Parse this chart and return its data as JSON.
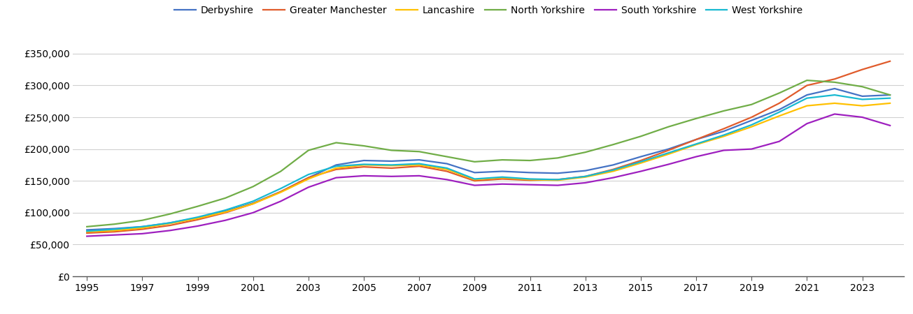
{
  "title": "",
  "years": [
    1995,
    1996,
    1997,
    1998,
    1999,
    2000,
    2001,
    2002,
    2003,
    2004,
    2005,
    2006,
    2007,
    2008,
    2009,
    2010,
    2011,
    2012,
    2013,
    2014,
    2015,
    2016,
    2017,
    2018,
    2019,
    2020,
    2021,
    2022,
    2023,
    2024
  ],
  "series": {
    "Derbyshire": [
      73000,
      75000,
      78000,
      84000,
      92000,
      102000,
      115000,
      133000,
      155000,
      175000,
      182000,
      181000,
      183000,
      177000,
      163000,
      165000,
      163000,
      162000,
      166000,
      175000,
      188000,
      200000,
      215000,
      228000,
      245000,
      262000,
      285000,
      295000,
      283000,
      285000
    ],
    "Greater Manchester": [
      68000,
      70000,
      74000,
      80000,
      89000,
      100000,
      114000,
      133000,
      155000,
      168000,
      172000,
      170000,
      173000,
      165000,
      150000,
      153000,
      151000,
      152000,
      157000,
      168000,
      182000,
      198000,
      215000,
      232000,
      250000,
      272000,
      300000,
      310000,
      325000,
      338000
    ],
    "Lancashire": [
      70000,
      72000,
      76000,
      83000,
      91000,
      101000,
      114000,
      132000,
      153000,
      170000,
      175000,
      174000,
      175000,
      168000,
      152000,
      155000,
      152000,
      151000,
      156000,
      165000,
      178000,
      192000,
      207000,
      220000,
      235000,
      252000,
      268000,
      272000,
      268000,
      272000
    ],
    "North Yorkshire": [
      78000,
      82000,
      88000,
      98000,
      110000,
      123000,
      141000,
      165000,
      198000,
      210000,
      205000,
      198000,
      196000,
      188000,
      180000,
      183000,
      182000,
      186000,
      195000,
      207000,
      220000,
      235000,
      248000,
      260000,
      270000,
      288000,
      308000,
      305000,
      298000,
      285000
    ],
    "South Yorkshire": [
      63000,
      65000,
      67000,
      72000,
      79000,
      88000,
      100000,
      118000,
      140000,
      155000,
      158000,
      157000,
      158000,
      152000,
      143000,
      145000,
      144000,
      143000,
      147000,
      155000,
      165000,
      176000,
      188000,
      198000,
      200000,
      212000,
      240000,
      255000,
      250000,
      237000
    ],
    "West Yorkshire": [
      71000,
      74000,
      78000,
      84000,
      93000,
      104000,
      118000,
      138000,
      160000,
      173000,
      176000,
      175000,
      177000,
      170000,
      153000,
      156000,
      153000,
      152000,
      157000,
      167000,
      180000,
      194000,
      208000,
      222000,
      238000,
      258000,
      280000,
      285000,
      278000,
      280000
    ]
  },
  "colors": {
    "Derbyshire": "#4472c4",
    "Greater Manchester": "#e05b2b",
    "Lancashire": "#ffc000",
    "North Yorkshire": "#70ad47",
    "South Yorkshire": "#9e1fbf",
    "West Yorkshire": "#17b9d1"
  },
  "ylim": [
    0,
    375000
  ],
  "yticks": [
    0,
    50000,
    100000,
    150000,
    200000,
    250000,
    300000,
    350000
  ],
  "xlim_min": 1994.5,
  "xlim_max": 2024.5,
  "xticks": [
    1995,
    1997,
    1999,
    2001,
    2003,
    2005,
    2007,
    2009,
    2011,
    2013,
    2015,
    2017,
    2019,
    2021,
    2023
  ],
  "background_color": "#ffffff",
  "grid_color": "#d0d0d0",
  "line_width": 1.6
}
